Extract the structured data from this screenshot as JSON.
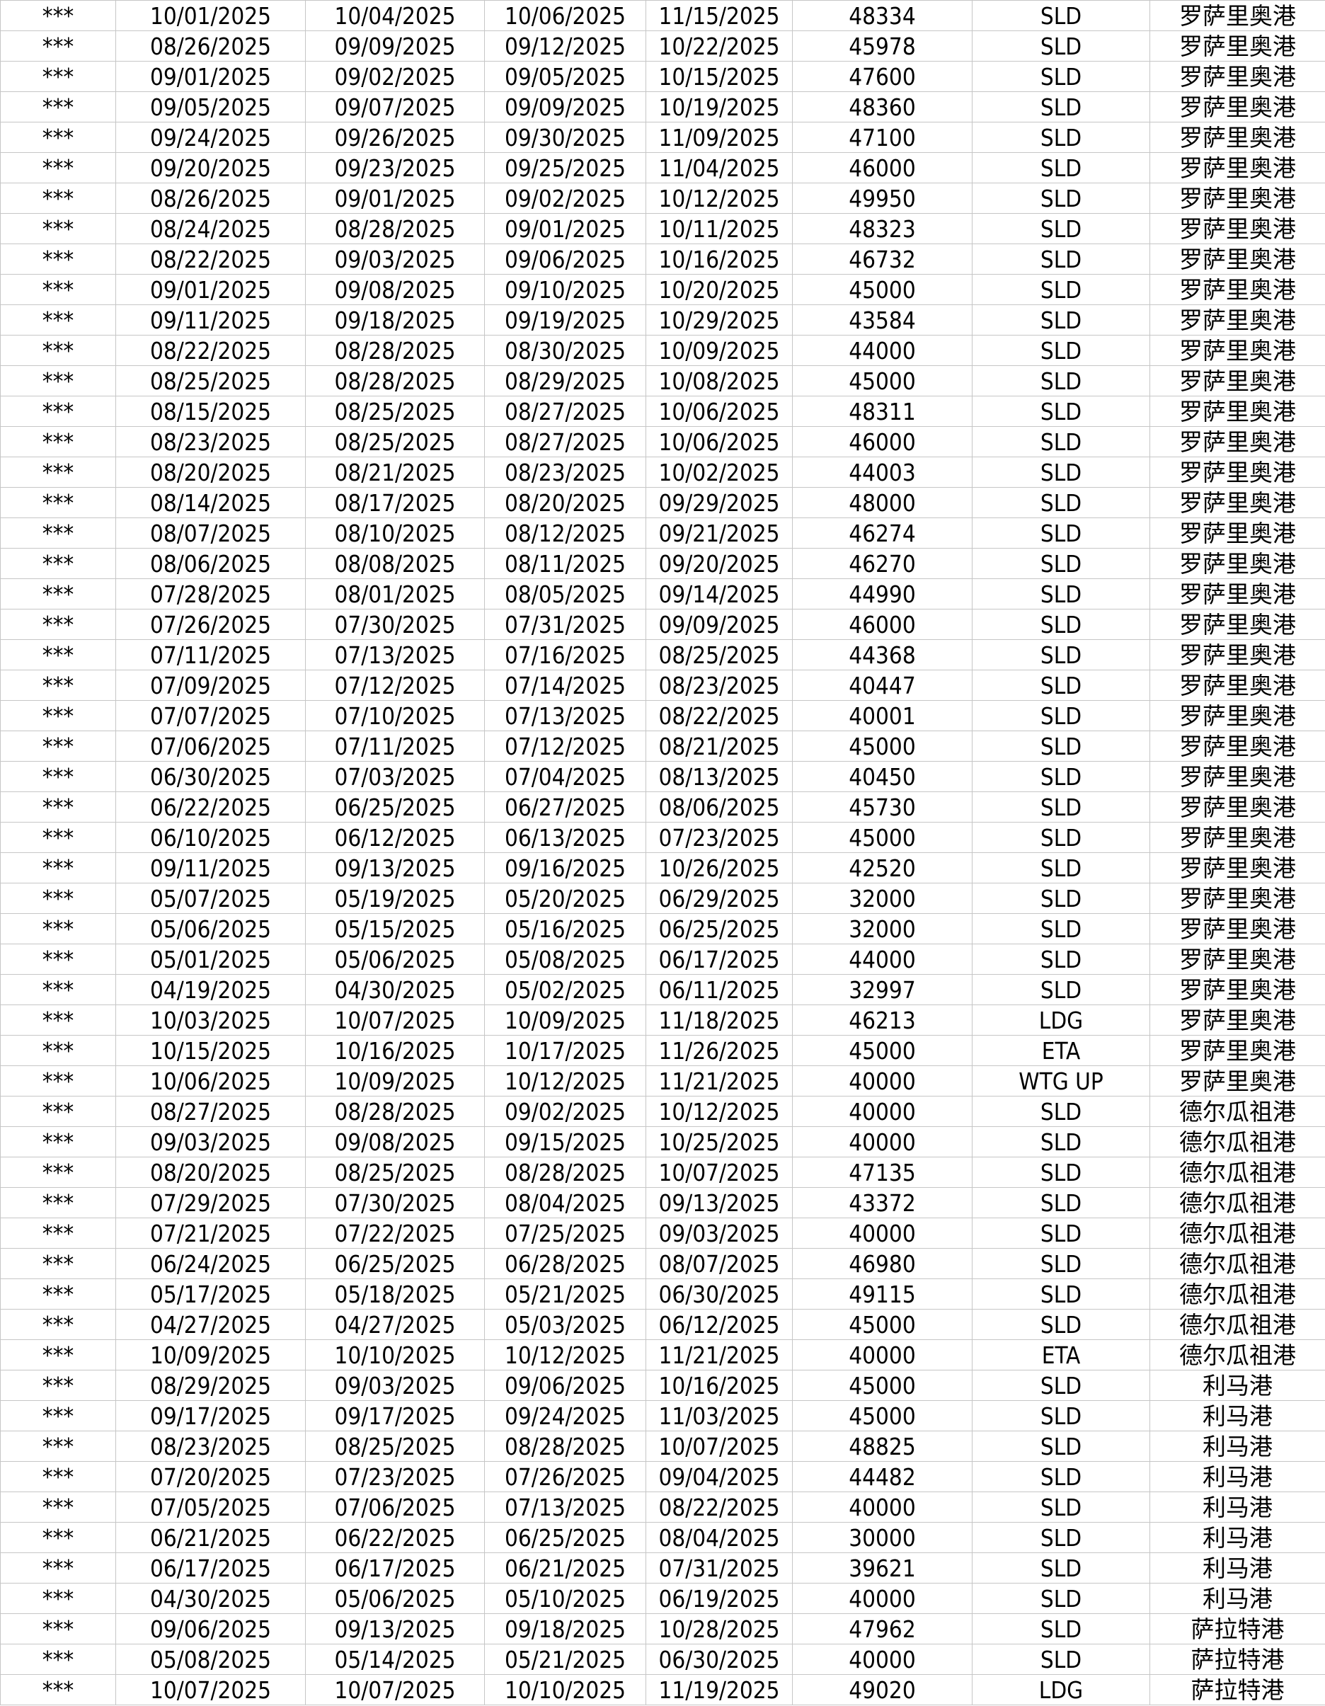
{
  "colors": {
    "gridline": "#c6c6c6",
    "text": "#000000",
    "background": "#ffffff"
  },
  "table": {
    "rows": [
      [
        "***",
        "10/01/2025",
        "10/04/2025",
        "10/06/2025",
        "11/15/2025",
        "48334",
        "SLD",
        "罗萨里奥港"
      ],
      [
        "***",
        "08/26/2025",
        "09/09/2025",
        "09/12/2025",
        "10/22/2025",
        "45978",
        "SLD",
        "罗萨里奥港"
      ],
      [
        "***",
        "09/01/2025",
        "09/02/2025",
        "09/05/2025",
        "10/15/2025",
        "47600",
        "SLD",
        "罗萨里奥港"
      ],
      [
        "***",
        "09/05/2025",
        "09/07/2025",
        "09/09/2025",
        "10/19/2025",
        "48360",
        "SLD",
        "罗萨里奥港"
      ],
      [
        "***",
        "09/24/2025",
        "09/26/2025",
        "09/30/2025",
        "11/09/2025",
        "47100",
        "SLD",
        "罗萨里奥港"
      ],
      [
        "***",
        "09/20/2025",
        "09/23/2025",
        "09/25/2025",
        "11/04/2025",
        "46000",
        "SLD",
        "罗萨里奥港"
      ],
      [
        "***",
        "08/26/2025",
        "09/01/2025",
        "09/02/2025",
        "10/12/2025",
        "49950",
        "SLD",
        "罗萨里奥港"
      ],
      [
        "***",
        "08/24/2025",
        "08/28/2025",
        "09/01/2025",
        "10/11/2025",
        "48323",
        "SLD",
        "罗萨里奥港"
      ],
      [
        "***",
        "08/22/2025",
        "09/03/2025",
        "09/06/2025",
        "10/16/2025",
        "46732",
        "SLD",
        "罗萨里奥港"
      ],
      [
        "***",
        "09/01/2025",
        "09/08/2025",
        "09/10/2025",
        "10/20/2025",
        "45000",
        "SLD",
        "罗萨里奥港"
      ],
      [
        "***",
        "09/11/2025",
        "09/18/2025",
        "09/19/2025",
        "10/29/2025",
        "43584",
        "SLD",
        "罗萨里奥港"
      ],
      [
        "***",
        "08/22/2025",
        "08/28/2025",
        "08/30/2025",
        "10/09/2025",
        "44000",
        "SLD",
        "罗萨里奥港"
      ],
      [
        "***",
        "08/25/2025",
        "08/28/2025",
        "08/29/2025",
        "10/08/2025",
        "45000",
        "SLD",
        "罗萨里奥港"
      ],
      [
        "***",
        "08/15/2025",
        "08/25/2025",
        "08/27/2025",
        "10/06/2025",
        "48311",
        "SLD",
        "罗萨里奥港"
      ],
      [
        "***",
        "08/23/2025",
        "08/25/2025",
        "08/27/2025",
        "10/06/2025",
        "46000",
        "SLD",
        "罗萨里奥港"
      ],
      [
        "***",
        "08/20/2025",
        "08/21/2025",
        "08/23/2025",
        "10/02/2025",
        "44003",
        "SLD",
        "罗萨里奥港"
      ],
      [
        "***",
        "08/14/2025",
        "08/17/2025",
        "08/20/2025",
        "09/29/2025",
        "48000",
        "SLD",
        "罗萨里奥港"
      ],
      [
        "***",
        "08/07/2025",
        "08/10/2025",
        "08/12/2025",
        "09/21/2025",
        "46274",
        "SLD",
        "罗萨里奥港"
      ],
      [
        "***",
        "08/06/2025",
        "08/08/2025",
        "08/11/2025",
        "09/20/2025",
        "46270",
        "SLD",
        "罗萨里奥港"
      ],
      [
        "***",
        "07/28/2025",
        "08/01/2025",
        "08/05/2025",
        "09/14/2025",
        "44990",
        "SLD",
        "罗萨里奥港"
      ],
      [
        "***",
        "07/26/2025",
        "07/30/2025",
        "07/31/2025",
        "09/09/2025",
        "46000",
        "SLD",
        "罗萨里奥港"
      ],
      [
        "***",
        "07/11/2025",
        "07/13/2025",
        "07/16/2025",
        "08/25/2025",
        "44368",
        "SLD",
        "罗萨里奥港"
      ],
      [
        "***",
        "07/09/2025",
        "07/12/2025",
        "07/14/2025",
        "08/23/2025",
        "40447",
        "SLD",
        "罗萨里奥港"
      ],
      [
        "***",
        "07/07/2025",
        "07/10/2025",
        "07/13/2025",
        "08/22/2025",
        "40001",
        "SLD",
        "罗萨里奥港"
      ],
      [
        "***",
        "07/06/2025",
        "07/11/2025",
        "07/12/2025",
        "08/21/2025",
        "45000",
        "SLD",
        "罗萨里奥港"
      ],
      [
        "***",
        "06/30/2025",
        "07/03/2025",
        "07/04/2025",
        "08/13/2025",
        "40450",
        "SLD",
        "罗萨里奥港"
      ],
      [
        "***",
        "06/22/2025",
        "06/25/2025",
        "06/27/2025",
        "08/06/2025",
        "45730",
        "SLD",
        "罗萨里奥港"
      ],
      [
        "***",
        "06/10/2025",
        "06/12/2025",
        "06/13/2025",
        "07/23/2025",
        "45000",
        "SLD",
        "罗萨里奥港"
      ],
      [
        "***",
        "09/11/2025",
        "09/13/2025",
        "09/16/2025",
        "10/26/2025",
        "42520",
        "SLD",
        "罗萨里奥港"
      ],
      [
        "***",
        "05/07/2025",
        "05/19/2025",
        "05/20/2025",
        "06/29/2025",
        "32000",
        "SLD",
        "罗萨里奥港"
      ],
      [
        "***",
        "05/06/2025",
        "05/15/2025",
        "05/16/2025",
        "06/25/2025",
        "32000",
        "SLD",
        "罗萨里奥港"
      ],
      [
        "***",
        "05/01/2025",
        "05/06/2025",
        "05/08/2025",
        "06/17/2025",
        "44000",
        "SLD",
        "罗萨里奥港"
      ],
      [
        "***",
        "04/19/2025",
        "04/30/2025",
        "05/02/2025",
        "06/11/2025",
        "32997",
        "SLD",
        "罗萨里奥港"
      ],
      [
        "***",
        "10/03/2025",
        "10/07/2025",
        "10/09/2025",
        "11/18/2025",
        "46213",
        "LDG",
        "罗萨里奥港"
      ],
      [
        "***",
        "10/15/2025",
        "10/16/2025",
        "10/17/2025",
        "11/26/2025",
        "45000",
        "ETA",
        "罗萨里奥港"
      ],
      [
        "***",
        "10/06/2025",
        "10/09/2025",
        "10/12/2025",
        "11/21/2025",
        "40000",
        "WTG UP",
        "罗萨里奥港"
      ],
      [
        "***",
        "08/27/2025",
        "08/28/2025",
        "09/02/2025",
        "10/12/2025",
        "40000",
        "SLD",
        "德尔瓜祖港"
      ],
      [
        "***",
        "09/03/2025",
        "09/08/2025",
        "09/15/2025",
        "10/25/2025",
        "40000",
        "SLD",
        "德尔瓜祖港"
      ],
      [
        "***",
        "08/20/2025",
        "08/25/2025",
        "08/28/2025",
        "10/07/2025",
        "47135",
        "SLD",
        "德尔瓜祖港"
      ],
      [
        "***",
        "07/29/2025",
        "07/30/2025",
        "08/04/2025",
        "09/13/2025",
        "43372",
        "SLD",
        "德尔瓜祖港"
      ],
      [
        "***",
        "07/21/2025",
        "07/22/2025",
        "07/25/2025",
        "09/03/2025",
        "40000",
        "SLD",
        "德尔瓜祖港"
      ],
      [
        "***",
        "06/24/2025",
        "06/25/2025",
        "06/28/2025",
        "08/07/2025",
        "46980",
        "SLD",
        "德尔瓜祖港"
      ],
      [
        "***",
        "05/17/2025",
        "05/18/2025",
        "05/21/2025",
        "06/30/2025",
        "49115",
        "SLD",
        "德尔瓜祖港"
      ],
      [
        "***",
        "04/27/2025",
        "04/27/2025",
        "05/03/2025",
        "06/12/2025",
        "45000",
        "SLD",
        "德尔瓜祖港"
      ],
      [
        "***",
        "10/09/2025",
        "10/10/2025",
        "10/12/2025",
        "11/21/2025",
        "40000",
        "ETA",
        "德尔瓜祖港"
      ],
      [
        "***",
        "08/29/2025",
        "09/03/2025",
        "09/06/2025",
        "10/16/2025",
        "45000",
        "SLD",
        "利马港"
      ],
      [
        "***",
        "09/17/2025",
        "09/17/2025",
        "09/24/2025",
        "11/03/2025",
        "45000",
        "SLD",
        "利马港"
      ],
      [
        "***",
        "08/23/2025",
        "08/25/2025",
        "08/28/2025",
        "10/07/2025",
        "48825",
        "SLD",
        "利马港"
      ],
      [
        "***",
        "07/20/2025",
        "07/23/2025",
        "07/26/2025",
        "09/04/2025",
        "44482",
        "SLD",
        "利马港"
      ],
      [
        "***",
        "07/05/2025",
        "07/06/2025",
        "07/13/2025",
        "08/22/2025",
        "40000",
        "SLD",
        "利马港"
      ],
      [
        "***",
        "06/21/2025",
        "06/22/2025",
        "06/25/2025",
        "08/04/2025",
        "30000",
        "SLD",
        "利马港"
      ],
      [
        "***",
        "06/17/2025",
        "06/17/2025",
        "06/21/2025",
        "07/31/2025",
        "39621",
        "SLD",
        "利马港"
      ],
      [
        "***",
        "04/30/2025",
        "05/06/2025",
        "05/10/2025",
        "06/19/2025",
        "40000",
        "SLD",
        "利马港"
      ],
      [
        "***",
        "09/06/2025",
        "09/13/2025",
        "09/18/2025",
        "10/28/2025",
        "47962",
        "SLD",
        "萨拉特港"
      ],
      [
        "***",
        "05/08/2025",
        "05/14/2025",
        "05/21/2025",
        "06/30/2025",
        "40000",
        "SLD",
        "萨拉特港"
      ],
      [
        "***",
        "10/07/2025",
        "10/07/2025",
        "10/10/2025",
        "11/19/2025",
        "49020",
        "LDG",
        "萨拉特港"
      ]
    ]
  }
}
